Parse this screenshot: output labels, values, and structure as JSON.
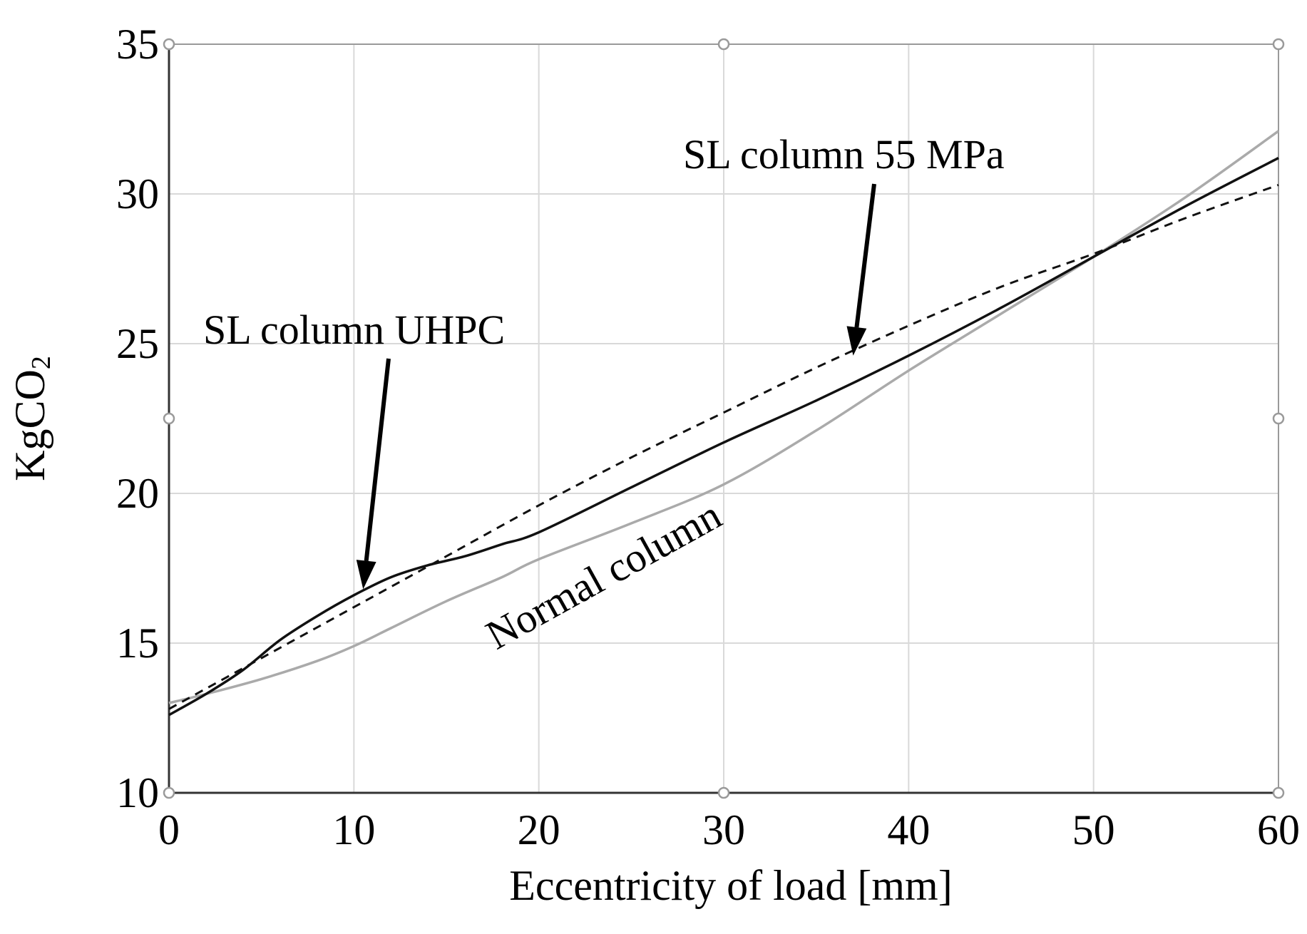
{
  "chart_data": {
    "type": "line",
    "title": "",
    "xlabel": "Eccentricity of load [mm]",
    "ylabel": {
      "main": "KgCO",
      "sub": "2"
    },
    "xlim": [
      0,
      60
    ],
    "ylim": [
      10,
      35
    ],
    "xticks": [
      0,
      10,
      20,
      30,
      40,
      50,
      60
    ],
    "yticks": [
      10,
      15,
      20,
      25,
      30,
      35
    ],
    "grid": true,
    "series": [
      {
        "name": "Normal column",
        "color": "#aaaaaa",
        "style": "solid",
        "x": [
          0,
          2,
          5,
          8,
          10,
          12,
          15,
          18,
          20,
          25,
          30,
          35,
          40,
          45,
          50,
          55,
          60
        ],
        "y": [
          13.0,
          13.3,
          13.8,
          14.4,
          14.9,
          15.5,
          16.4,
          17.2,
          17.8,
          19.0,
          20.3,
          22.1,
          24.1,
          26.0,
          27.9,
          29.9,
          32.1
        ]
      },
      {
        "name": "SL column UHPC",
        "color": "#111111",
        "style": "solid",
        "x": [
          0,
          2,
          4,
          6,
          8,
          10,
          12,
          14,
          16,
          18,
          20,
          25,
          30,
          35,
          40,
          45,
          50,
          55,
          60
        ],
        "y": [
          12.6,
          13.3,
          14.1,
          15.1,
          15.9,
          16.6,
          17.2,
          17.6,
          17.9,
          18.3,
          18.7,
          20.2,
          21.7,
          23.1,
          24.6,
          26.2,
          27.9,
          29.6,
          31.2
        ]
      },
      {
        "name": "SL column 55 MPa",
        "color": "#111111",
        "style": "dashed",
        "x": [
          0,
          5,
          10,
          15,
          20,
          25,
          30,
          35,
          40,
          45,
          50,
          55,
          60
        ],
        "y": [
          12.8,
          14.5,
          16.2,
          17.9,
          19.6,
          21.2,
          22.7,
          24.2,
          25.6,
          26.9,
          28.0,
          29.2,
          30.3
        ]
      }
    ],
    "annotations": [
      {
        "text": "SL column UHPC",
        "points_to": {
          "x": 10.5,
          "y": 16.8
        }
      },
      {
        "text": "SL column 55 MPa",
        "points_to": {
          "x": 37,
          "y": 24.6
        }
      },
      {
        "text": "Normal column",
        "points_to": null
      }
    ]
  }
}
